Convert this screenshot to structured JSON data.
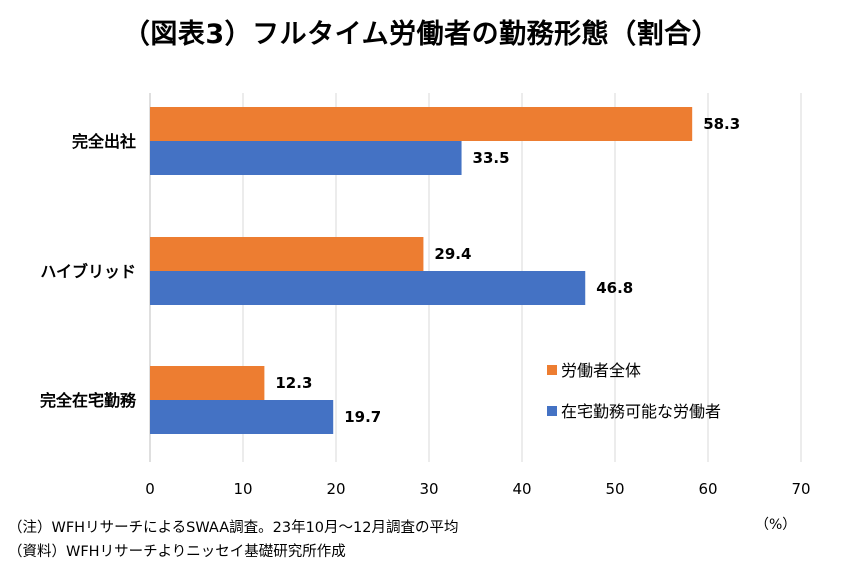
{
  "title": "（図表3）フルタイム労働者の勤務形態（割合）",
  "unit": "（%）",
  "notes": [
    "（注）WFHリサーチによるSWAA調査。23年10月～12月調査の平均",
    "（資料）WFHリサーチよりニッセイ基礎研究所作成"
  ],
  "chart_data": {
    "type": "bar",
    "orientation": "horizontal",
    "title": "（図表3）フルタイム労働者の勤務形態（割合）",
    "categories": [
      "完全出社",
      "ハイブリッド",
      "完全在宅勤務"
    ],
    "series": [
      {
        "name": "労働者全体",
        "color": "#ED7D31",
        "values": [
          58.3,
          29.4,
          12.3
        ]
      },
      {
        "name": "在宅勤務可能な労働者",
        "color": "#4472C4",
        "values": [
          33.5,
          46.8,
          19.7
        ]
      }
    ],
    "xlim": [
      0,
      70
    ],
    "xticks": [
      "0",
      "10",
      "20",
      "30",
      "40",
      "50",
      "60",
      "70"
    ],
    "xunit": "（%）",
    "grid": true,
    "legend": "bottom-right"
  }
}
